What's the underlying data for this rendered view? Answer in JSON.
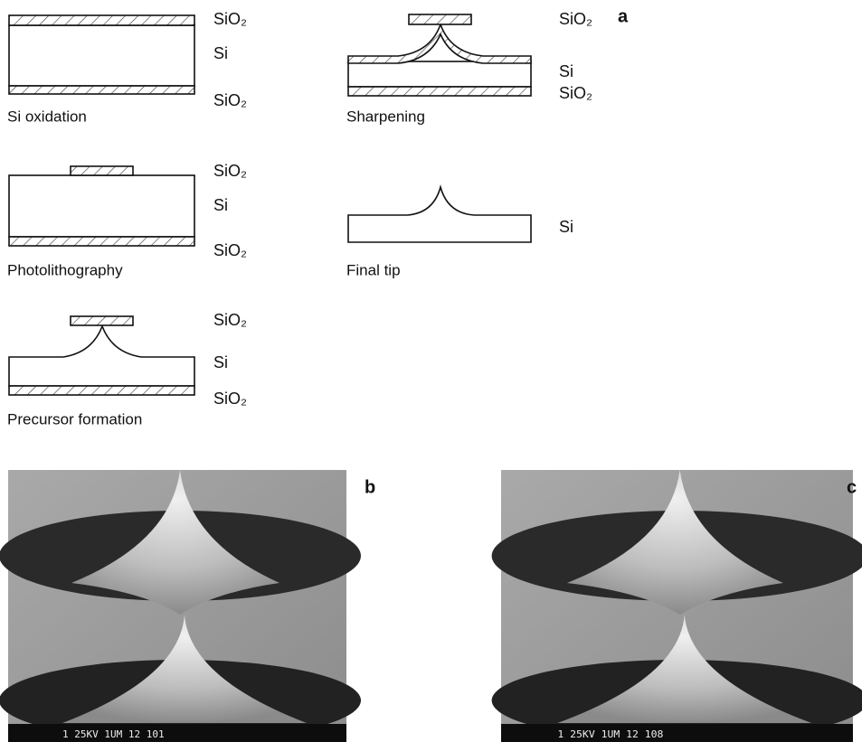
{
  "panel_a": {
    "label": "a",
    "steps": [
      {
        "caption": "Si oxidation",
        "labels": [
          "SiO₂",
          "Si",
          "SiO₂"
        ]
      },
      {
        "caption": "Photolithography",
        "labels": [
          "SiO₂",
          "Si",
          "SiO₂"
        ]
      },
      {
        "caption": "Precursor formation",
        "labels": [
          "SiO₂",
          "Si",
          "SiO₂"
        ]
      },
      {
        "caption": "Sharpening",
        "labels": [
          "SiO₂",
          "Si",
          "SiO₂"
        ]
      },
      {
        "caption": "Final tip",
        "labels": [
          "Si"
        ]
      }
    ]
  },
  "panel_b": {
    "label": "b",
    "footer": "1   25KV    1UM   12 101"
  },
  "panel_c": {
    "label": "c",
    "footer": "1   25KV    1UM   12 108"
  }
}
